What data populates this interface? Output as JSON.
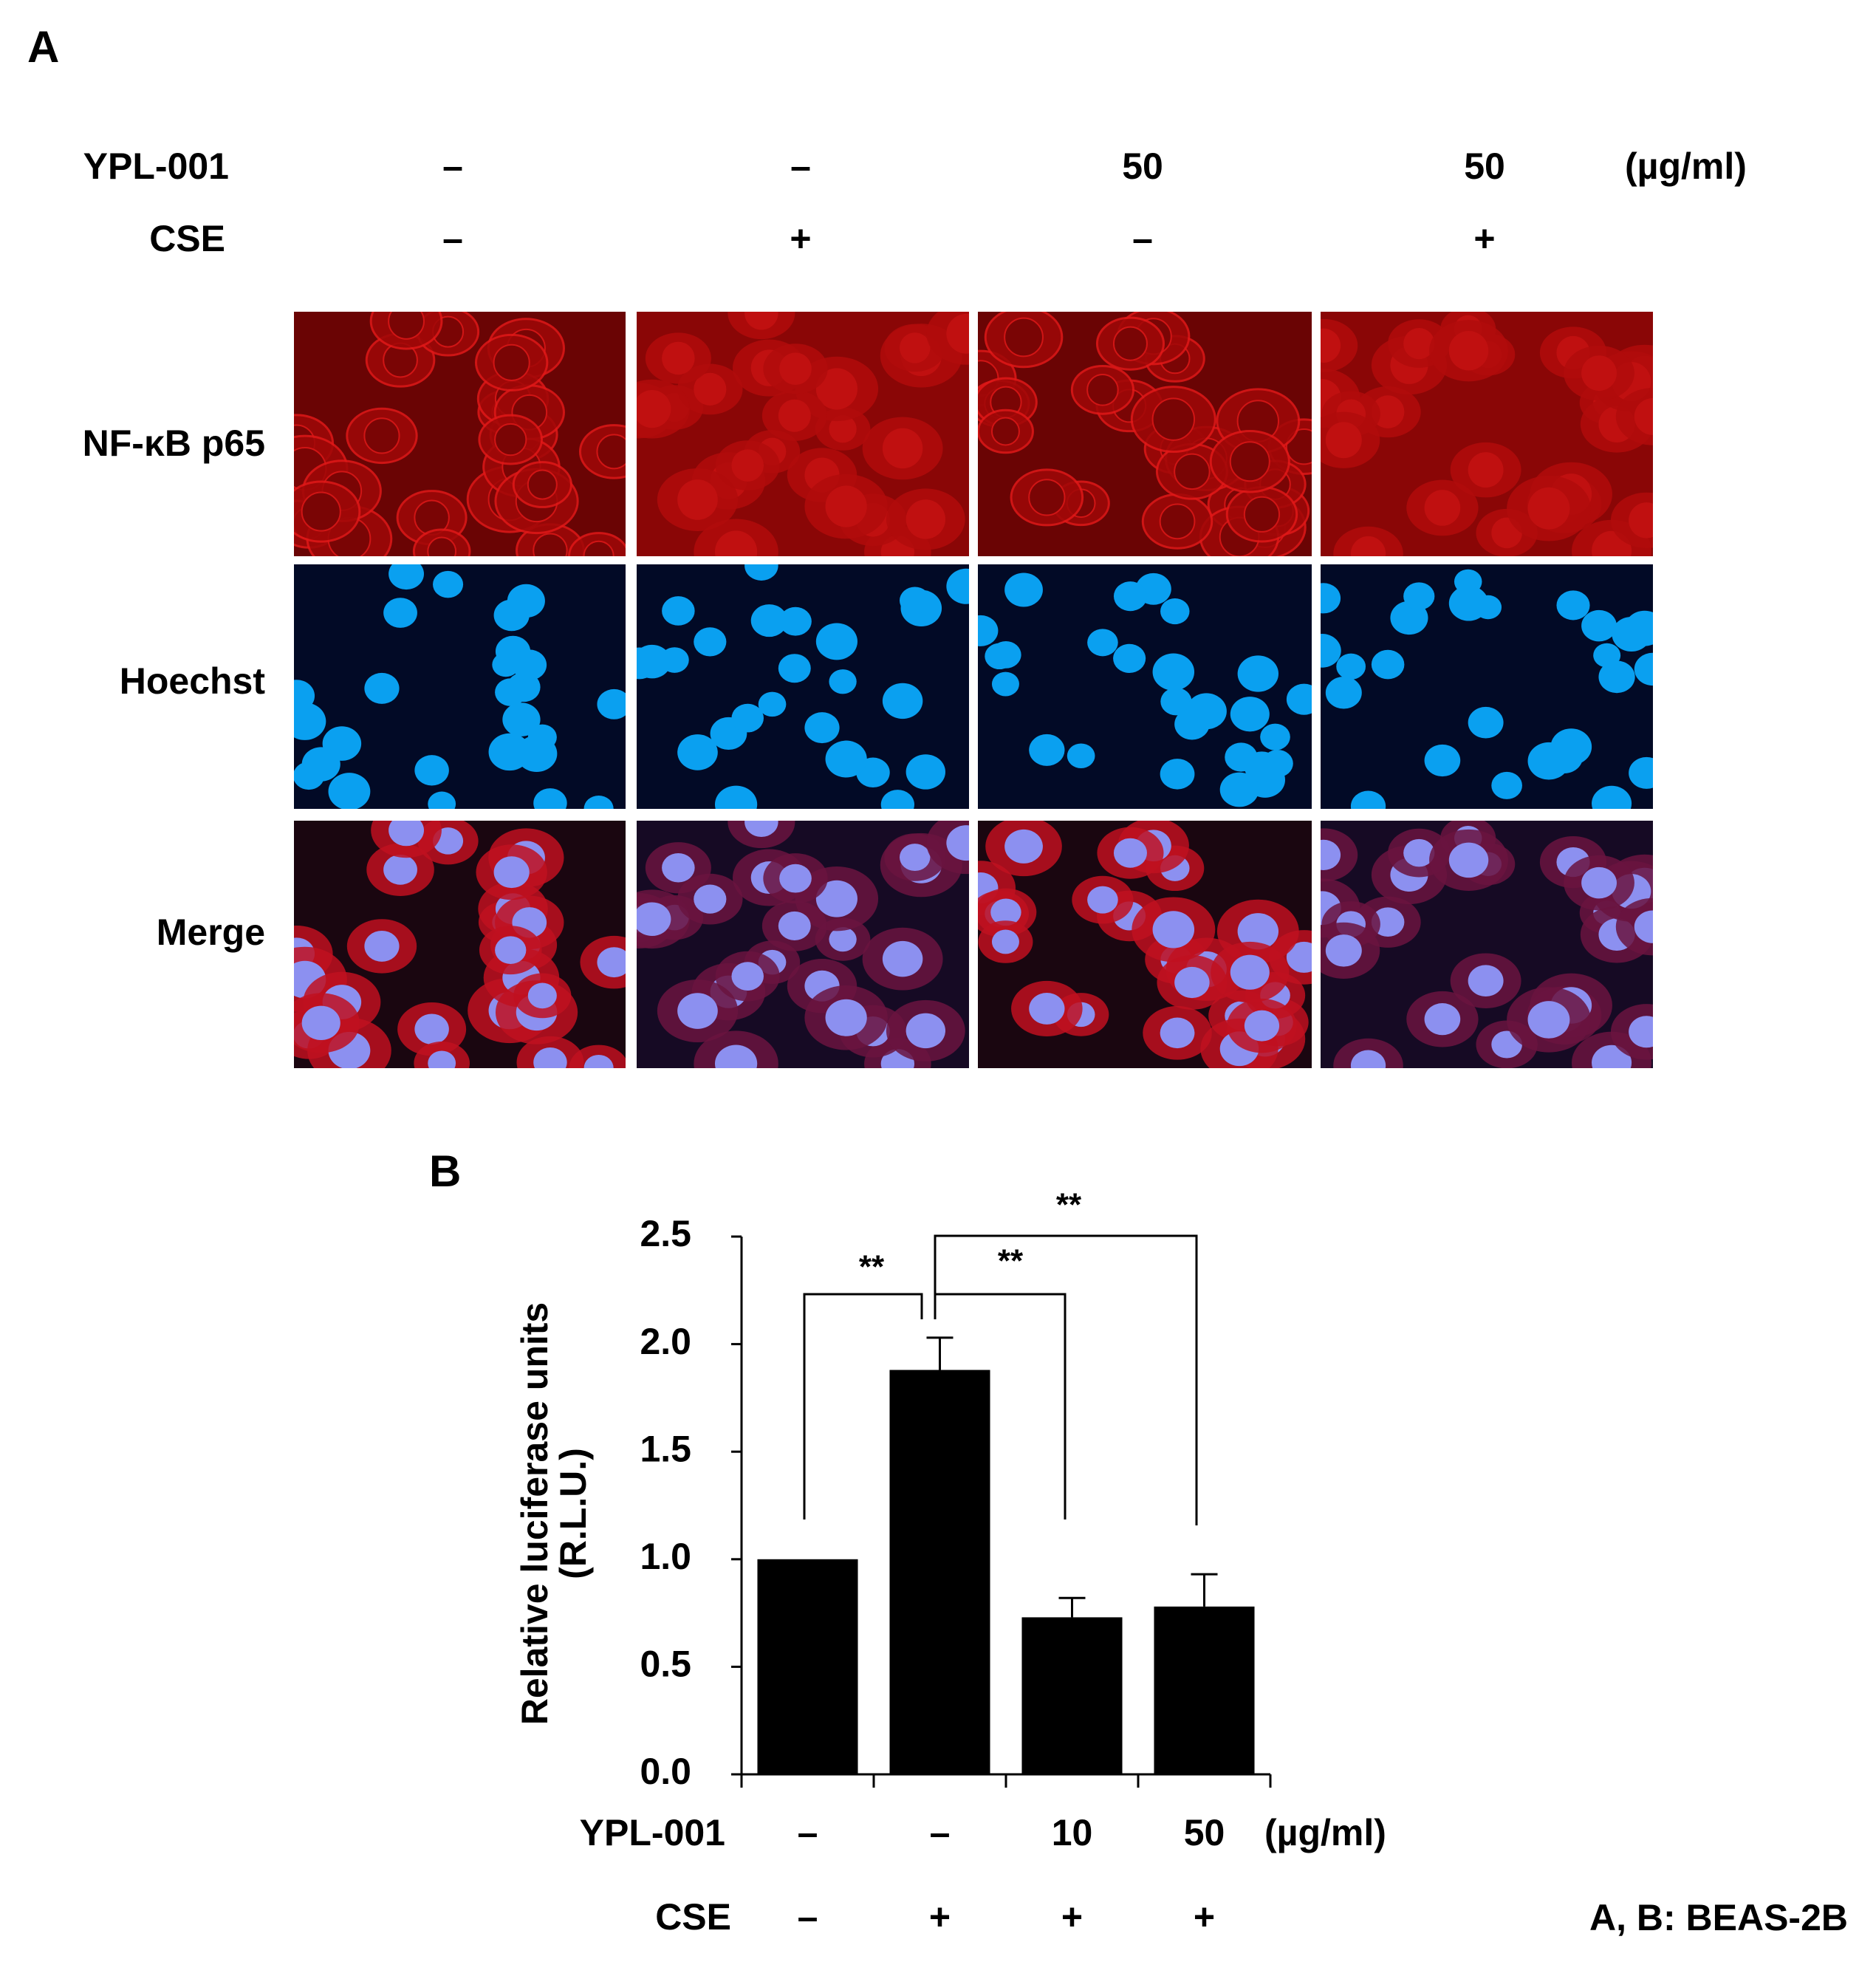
{
  "panel_a": {
    "label": "A",
    "conditions": [
      {
        "label": "YPL-001",
        "values": [
          "–",
          "–",
          "50",
          "50"
        ],
        "unit": "(µg/ml)"
      },
      {
        "label": "CSE",
        "values": [
          "–",
          "+",
          "–",
          "+"
        ]
      }
    ],
    "row_labels": [
      "NF-κB p65",
      "Hoechst",
      "Merge"
    ]
  },
  "chart_data": {
    "type": "bar",
    "label": "B",
    "y_label": [
      "Relative luciferase units",
      "(R.L.U.)"
    ],
    "values": [
      1.0,
      1.88,
      0.73,
      0.78
    ],
    "errors": [
      null,
      0.15,
      0.09,
      0.15
    ],
    "color": "#000000",
    "ylim": [
      0,
      2.5
    ],
    "yticks": [
      {
        "value": 0,
        "label": "0.0"
      },
      0.5,
      {
        "value": 1,
        "label": "1.0"
      },
      1.5,
      {
        "value": 2,
        "label": "2.0"
      },
      2.5
    ],
    "conditions": [
      {
        "label": "YPL-001",
        "values": [
          "–",
          "–",
          "10",
          "50"
        ],
        "unit": "(µg/ml)"
      },
      {
        "label": "CSE",
        "values": [
          "–",
          "+",
          "+",
          "+"
        ]
      }
    ],
    "annotations": [
      "**",
      "**",
      "**"
    ]
  },
  "footnote": "A, B: BEAS-2B"
}
